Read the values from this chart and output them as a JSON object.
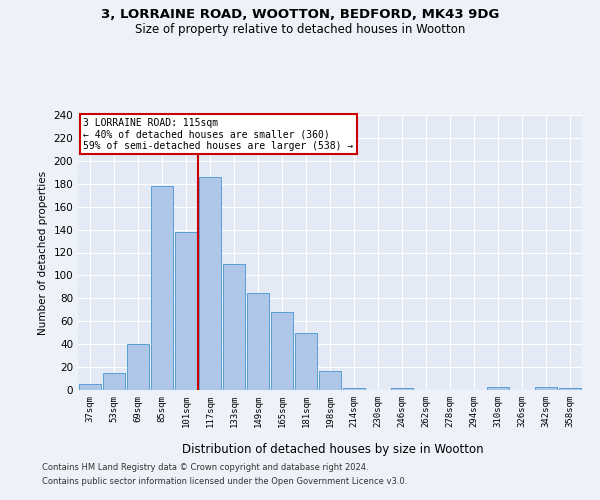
{
  "title_line1": "3, LORRAINE ROAD, WOOTTON, BEDFORD, MK43 9DG",
  "title_line2": "Size of property relative to detached houses in Wootton",
  "xlabel": "Distribution of detached houses by size in Wootton",
  "ylabel": "Number of detached properties",
  "categories": [
    "37sqm",
    "53sqm",
    "69sqm",
    "85sqm",
    "101sqm",
    "117sqm",
    "133sqm",
    "149sqm",
    "165sqm",
    "181sqm",
    "198sqm",
    "214sqm",
    "230sqm",
    "246sqm",
    "262sqm",
    "278sqm",
    "294sqm",
    "310sqm",
    "326sqm",
    "342sqm",
    "358sqm"
  ],
  "values": [
    5,
    15,
    40,
    178,
    138,
    186,
    110,
    85,
    68,
    50,
    17,
    2,
    0,
    2,
    0,
    0,
    0,
    3,
    0,
    3,
    2
  ],
  "bar_color": "#aec6e8",
  "bar_edge_color": "#5a9fd4",
  "highlight_index": 5,
  "highlight_color": "#cc0000",
  "ylim": [
    0,
    240
  ],
  "yticks": [
    0,
    20,
    40,
    60,
    80,
    100,
    120,
    140,
    160,
    180,
    200,
    220,
    240
  ],
  "annotation_title": "3 LORRAINE ROAD: 115sqm",
  "annotation_line1": "← 40% of detached houses are smaller (360)",
  "annotation_line2": "59% of semi-detached houses are larger (538) →",
  "footer_line1": "Contains HM Land Registry data © Crown copyright and database right 2024.",
  "footer_line2": "Contains public sector information licensed under the Open Government Licence v3.0.",
  "bg_color": "#edf2f9",
  "plot_bg_color": "#e4eaf5"
}
